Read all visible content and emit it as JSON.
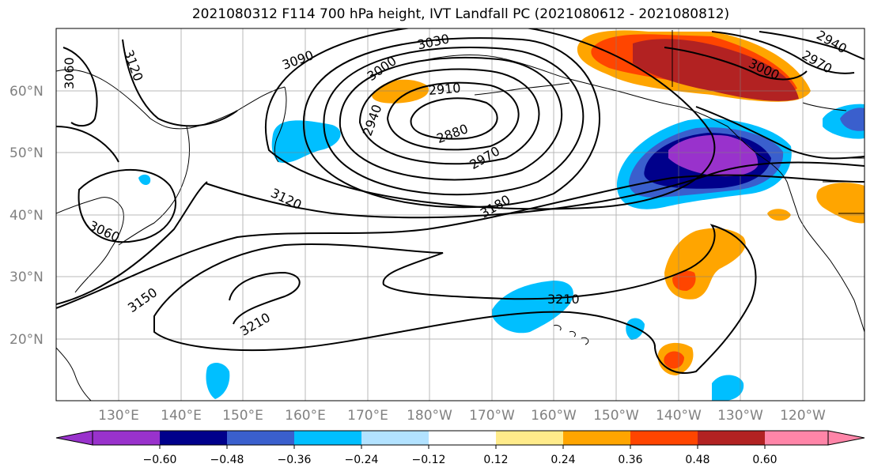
{
  "title": "2021080312 F114 700 hPa height, IVT Landfall PC (2021080612 - 2021080812)",
  "lat_labels": [
    "60°N",
    "50°N",
    "40°N",
    "30°N",
    "20°N"
  ],
  "lon_labels": [
    "130°E",
    "140°E",
    "150°E",
    "160°E",
    "170°E",
    "180°W",
    "170°W",
    "160°W",
    "150°W",
    "140°W",
    "130°W",
    "120°W"
  ],
  "colorbar": {
    "ticks": [
      "−0.60",
      "−0.48",
      "−0.36",
      "−0.24",
      "−0.12",
      "0.12",
      "0.24",
      "0.36",
      "0.48",
      "0.60"
    ],
    "colors": [
      "#9932CC",
      "#00008B",
      "#3A5FCD",
      "#00BFFF",
      "#B2E2FF",
      "#FFFFFF",
      "#FFEB8A",
      "#FFA500",
      "#FF4500",
      "#B22222",
      "#FF85A8",
      "#FF85A8"
    ]
  },
  "contour_labels": [
    "3060",
    "3120",
    "3090",
    "3030",
    "3000",
    "2910",
    "2940",
    "2880",
    "2970",
    "3120",
    "3180",
    "3060",
    "3150",
    "3210",
    "3210",
    "3000",
    "2970",
    "2940"
  ]
}
